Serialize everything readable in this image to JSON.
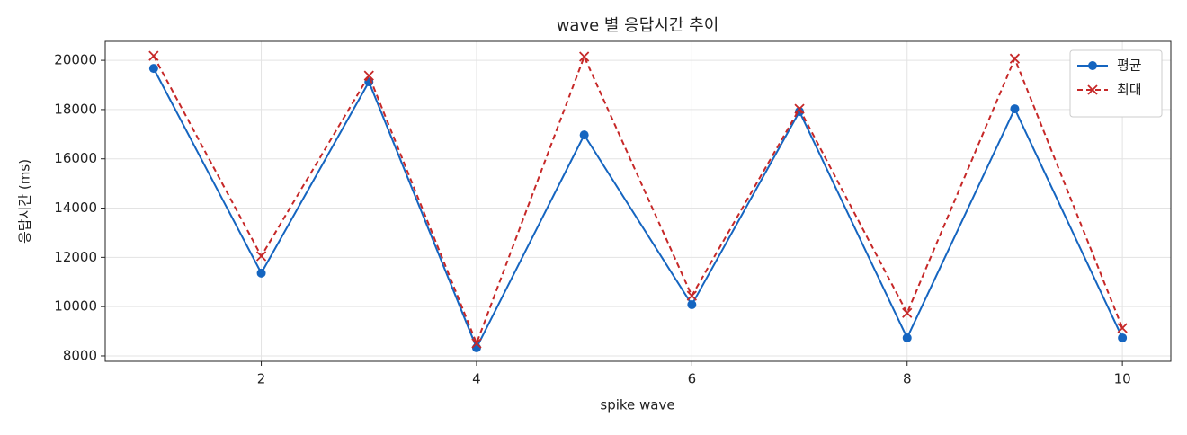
{
  "chart_data": {
    "type": "line",
    "title": "wave 별 응답시간 추이",
    "x_label": "spike wave",
    "y_label": "응답시간 (ms)",
    "x": [
      1,
      2,
      3,
      4,
      5,
      6,
      7,
      8,
      9,
      10
    ],
    "series": [
      {
        "name": "평균",
        "color": "#1565c0",
        "marker": "circle",
        "dash": false,
        "values": [
          19670,
          11360,
          19125,
          8330,
          16970,
          10080,
          17920,
          8730,
          18030,
          8730
        ]
      },
      {
        "name": "최대",
        "color": "#c62828",
        "marker": "x",
        "dash": true,
        "values": [
          20180,
          12050,
          19380,
          8510,
          20150,
          10440,
          18030,
          9740,
          20070,
          9130
        ]
      }
    ],
    "xlim": [
      0.55,
      10.45
    ],
    "xticks": [
      2,
      4,
      6,
      8,
      10
    ],
    "ylim": [
      7780,
      20770
    ],
    "yticks": [
      8000,
      10000,
      12000,
      14000,
      16000,
      18000,
      20000
    ],
    "grid": true,
    "legend": "upper right"
  }
}
